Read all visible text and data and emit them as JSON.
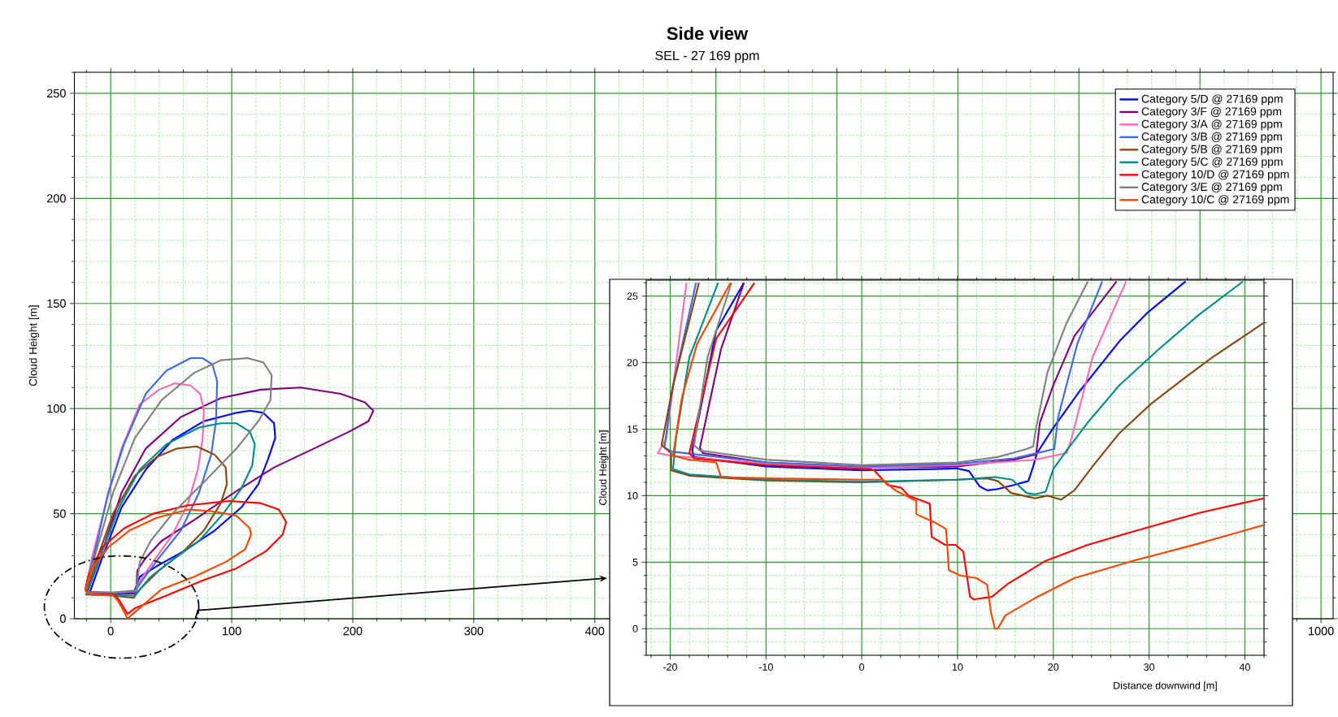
{
  "chart_data": [
    {
      "type": "line",
      "title": "Side view",
      "subtitle": "SEL - 27 169 ppm",
      "ylabel": "Cloud Height [m]",
      "xlim": [
        -30,
        1010
      ],
      "ylim": [
        0,
        260
      ],
      "xticks": [
        {
          "value": -20,
          "label": null
        },
        0,
        {
          "value": 20,
          "label": null
        },
        {
          "value": 40,
          "label": null
        },
        {
          "value": 60,
          "label": null
        },
        {
          "value": 80,
          "label": null
        },
        100,
        {
          "value": 120,
          "label": null
        },
        {
          "value": 140,
          "label": null
        },
        {
          "value": 160,
          "label": null
        },
        {
          "value": 180,
          "label": null
        },
        200,
        {
          "value": 220,
          "label": null
        },
        {
          "value": 240,
          "label": null
        },
        {
          "value": 260,
          "label": null
        },
        {
          "value": 280,
          "label": null
        },
        300,
        {
          "value": 320,
          "label": null
        },
        {
          "value": 340,
          "label": null
        },
        {
          "value": 360,
          "label": null
        },
        {
          "value": 380,
          "label": null
        },
        400,
        {
          "value": 420,
          "label": null
        },
        {
          "value": 440,
          "label": null
        },
        {
          "value": 460,
          "label": null
        },
        {
          "value": 480,
          "label": null
        },
        {
          "value": 500,
          "label": null
        },
        {
          "value": 520,
          "label": null
        },
        {
          "value": 540,
          "label": null
        },
        {
          "value": 560,
          "label": null
        },
        {
          "value": 580,
          "label": null
        },
        {
          "value": 600,
          "label": null
        },
        {
          "value": 620,
          "label": null
        },
        {
          "value": 640,
          "label": null
        },
        {
          "value": 660,
          "label": null
        },
        {
          "value": 680,
          "label": null
        },
        {
          "value": 700,
          "label": null
        },
        {
          "value": 720,
          "label": null
        },
        {
          "value": 740,
          "label": null
        },
        {
          "value": 760,
          "label": null
        },
        {
          "value": 780,
          "label": null
        },
        {
          "value": 800,
          "label": null
        },
        {
          "value": 820,
          "label": null
        },
        {
          "value": 840,
          "label": null
        },
        {
          "value": 860,
          "label": null
        },
        {
          "value": 880,
          "label": null
        },
        {
          "value": 900,
          "label": null
        },
        {
          "value": 920,
          "label": null
        },
        {
          "value": 940,
          "label": null
        },
        {
          "value": 960,
          "label": null
        },
        {
          "value": 980,
          "label": null
        },
        1000
      ],
      "yticks": [
        0,
        {
          "value": 10,
          "label": null
        },
        {
          "value": 20,
          "label": null
        },
        {
          "value": 30,
          "label": null
        },
        {
          "value": 40,
          "label": null
        },
        50,
        {
          "value": 60,
          "label": null
        },
        {
          "value": 70,
          "label": null
        },
        {
          "value": 80,
          "label": null
        },
        {
          "value": 90,
          "label": null
        },
        100,
        {
          "value": 110,
          "label": null
        },
        {
          "value": 120,
          "label": null
        },
        {
          "value": 130,
          "label": null
        },
        {
          "value": 140,
          "label": null
        },
        150,
        {
          "value": 160,
          "label": null
        },
        {
          "value": 170,
          "label": null
        },
        {
          "value": 180,
          "label": null
        },
        {
          "value": 190,
          "label": null
        },
        200,
        {
          "value": 210,
          "label": null
        },
        {
          "value": 220,
          "label": null
        },
        {
          "value": 230,
          "label": null
        },
        {
          "value": 240,
          "label": null
        },
        250,
        {
          "value": 260,
          "label": null
        }
      ],
      "grid": true,
      "legend": "top right",
      "series": [
        {
          "name": "Category 5/D @ 27169 ppm",
          "color": "#0000ff",
          "x": [
            -17,
            -7,
            9,
            29,
            51,
            77,
            104,
            115,
            126,
            135,
            136,
            130,
            122,
            108,
            86,
            60,
            38,
            24,
            19,
            2,
            -17
          ],
          "values": [
            13,
            29,
            53,
            71,
            85,
            94,
            98,
            99,
            98,
            93,
            86,
            76,
            64,
            53,
            42,
            32,
            25,
            20,
            12,
            11.7,
            12.4
          ]
        },
        {
          "name": "Category 3/F @ 27169 ppm",
          "color": "#800080",
          "x": [
            -19,
            -7,
            9,
            29,
            58,
            91,
            124,
            157,
            190,
            210,
            217,
            213,
            197,
            168,
            135,
            102,
            69,
            42,
            29,
            22,
            21,
            2,
            -19
          ],
          "values": [
            13,
            32,
            60,
            81,
            96,
            105,
            109,
            110,
            107,
            103,
            99,
            94,
            89,
            81,
            72,
            60,
            47,
            37,
            29,
            23,
            12,
            12.2,
            12.5
          ]
        },
        {
          "name": "Category 3/A @ 27169 ppm",
          "color": "#ff69b4",
          "x": [
            -21,
            -15.5,
            -4,
            9,
            24,
            40,
            53,
            66,
            74,
            77,
            76,
            72,
            64,
            51,
            35,
            24,
            21,
            2,
            -20
          ],
          "values": [
            13,
            29,
            55,
            81,
            102,
            109,
            112,
            111,
            107,
            99,
            86,
            71,
            55,
            40,
            27,
            18,
            13,
            12.2,
            12.6
          ]
        },
        {
          "name": "Category 3/B @ 27169 ppm",
          "color": "#4169e1",
          "x": [
            -21,
            -13,
            -2,
            11,
            29,
            46,
            66,
            76,
            84,
            88,
            87,
            83,
            73,
            58,
            40,
            27,
            20,
            2,
            -20
          ],
          "values": [
            13.8,
            32,
            60,
            83,
            107,
            118,
            124,
            124,
            121,
            113,
            94,
            78,
            60,
            42,
            29,
            19,
            13,
            12.3,
            12.8
          ]
        },
        {
          "name": "Category 5/B @ 27169 ppm",
          "color": "#8b4513",
          "x": [
            -20,
            -11,
            2,
            20,
            38,
            55,
            71,
            86,
            95,
            96,
            91,
            77,
            60,
            40,
            24,
            19,
            2,
            -20,
            -20.5
          ],
          "values": [
            12.5,
            29,
            50,
            68,
            77,
            81,
            82,
            78,
            72,
            64,
            55,
            42,
            32,
            23,
            14,
            10,
            11,
            11.5,
            12.2
          ]
        },
        {
          "name": "Category 5/C @ 27169 ppm",
          "color": "#008b8b",
          "x": [
            -20,
            -9,
            7,
            24,
            46,
            73,
            91,
            104,
            115,
            119,
            117,
            108,
            93,
            73,
            51,
            33,
            20,
            2,
            -20.5
          ],
          "values": [
            12,
            29,
            53,
            71,
            83,
            91,
            93,
            93,
            89,
            83,
            73,
            62,
            50,
            37,
            28,
            20,
            11,
            11,
            11.8
          ]
        },
        {
          "name": "Category 10/D @ 27169 ppm",
          "color": "#ff0000",
          "x": [
            -21,
            -18,
            -7,
            11,
            35,
            64,
            98,
            124,
            139,
            145,
            142,
            128,
            104,
            75,
            46,
            20,
            14,
            11,
            7,
            2,
            -18,
            -20.5
          ],
          "values": [
            13.8,
            21.5,
            34,
            43,
            50,
            54,
            56,
            55,
            52,
            46,
            40,
            32,
            24,
            18,
            11,
            5,
            2.3,
            5,
            9,
            12,
            12.8,
            13.3
          ]
        },
        {
          "name": "Category 3/E @ 27169 ppm",
          "color": "#808080",
          "x": [
            -21,
            -11,
            2,
            20,
            42,
            69,
            91,
            113,
            126,
            133,
            132,
            122,
            104,
            77,
            51,
            33,
            24,
            21,
            2,
            -20
          ],
          "values": [
            13,
            34,
            60,
            86,
            104,
            117,
            123,
            124,
            122,
            116,
            104,
            94,
            81,
            65,
            50,
            37,
            27,
            13.5,
            12.5,
            12.6
          ]
        },
        {
          "name": "Category 10/C @ 27169 ppm",
          "color": "#ff4500",
          "x": [
            -21,
            -15.5,
            -2,
            15.5,
            38,
            64,
            86,
            104,
            115,
            116,
            111,
            95,
            69,
            42,
            18,
            14,
            10,
            6,
            2,
            -15,
            -20
          ],
          "values": [
            13,
            24,
            34,
            42,
            48,
            52,
            51,
            49,
            43,
            40,
            33,
            27,
            20,
            14,
            2.2,
            0,
            4.5,
            8.5,
            11.2,
            11.3,
            12.4
          ]
        }
      ]
    },
    {
      "type": "line",
      "xlabel": "Distance downwind [m]",
      "ylabel": "Cloud Height [m]",
      "xlim": [
        -22.5,
        42
      ],
      "ylim": [
        -2,
        26.2
      ],
      "xticks": [
        {
          "value": -22,
          "label": null
        },
        -20,
        {
          "value": -18,
          "label": null
        },
        {
          "value": -16,
          "label": null
        },
        {
          "value": -14,
          "label": null
        },
        {
          "value": -12,
          "label": null
        },
        -10,
        {
          "value": -8,
          "label": null
        },
        {
          "value": -6,
          "label": null
        },
        {
          "value": -4,
          "label": null
        },
        {
          "value": -2,
          "label": null
        },
        0,
        {
          "value": 2,
          "label": null
        },
        {
          "value": 4,
          "label": null
        },
        {
          "value": 6,
          "label": null
        },
        {
          "value": 8,
          "label": null
        },
        10,
        {
          "value": 12,
          "label": null
        },
        {
          "value": 14,
          "label": null
        },
        {
          "value": 16,
          "label": null
        },
        {
          "value": 18,
          "label": null
        },
        20,
        {
          "value": 22,
          "label": null
        },
        {
          "value": 24,
          "label": null
        },
        {
          "value": 26,
          "label": null
        },
        {
          "value": 28,
          "label": null
        },
        30,
        {
          "value": 32,
          "label": null
        },
        {
          "value": 34,
          "label": null
        },
        {
          "value": 36,
          "label": null
        },
        {
          "value": 38,
          "label": null
        },
        40,
        {
          "value": 42,
          "label": null
        }
      ],
      "yticks": [
        {
          "value": -2,
          "label": null
        },
        {
          "value": -1,
          "label": null
        },
        0,
        {
          "value": 1,
          "label": null
        },
        {
          "value": 2,
          "label": null
        },
        {
          "value": 3,
          "label": null
        },
        {
          "value": 4,
          "label": null
        },
        5,
        {
          "value": 6,
          "label": null
        },
        {
          "value": 7,
          "label": null
        },
        {
          "value": 8,
          "label": null
        },
        {
          "value": 9,
          "label": null
        },
        10,
        {
          "value": 11,
          "label": null
        },
        {
          "value": 12,
          "label": null
        },
        {
          "value": 13,
          "label": null
        },
        {
          "value": 14,
          "label": null
        },
        15,
        {
          "value": 16,
          "label": null
        },
        {
          "value": 17,
          "label": null
        },
        {
          "value": 18,
          "label": null
        },
        {
          "value": 19,
          "label": null
        },
        20,
        {
          "value": 21,
          "label": null
        },
        {
          "value": 22,
          "label": null
        },
        {
          "value": 23,
          "label": null
        },
        {
          "value": 24,
          "label": null
        },
        25,
        {
          "value": 26,
          "label": null
        }
      ],
      "grid": true,
      "series": [
        {
          "color": "#0000ff",
          "x": [
            -12.3,
            -15.2,
            -17.7,
            -17.5,
            -10,
            0,
            7.6,
            9.9,
            11.2,
            12.3,
            13.1,
            14.2,
            15.9,
            17.4,
            17.9,
            18.3,
            20,
            22.8,
            26.9,
            29.9,
            33.8
          ],
          "values": [
            26,
            22.4,
            13.4,
            12.9,
            12.2,
            11.9,
            12.0,
            12.05,
            11.85,
            10.7,
            10.4,
            10.5,
            10.8,
            11.1,
            12.2,
            13.2,
            15.1,
            17.9,
            21.6,
            23.8,
            26.1
          ]
        },
        {
          "color": "#800080",
          "x": [
            -12.3,
            -14.7,
            -16.9,
            -16.6,
            -10,
            0,
            10,
            15.9,
            18.2,
            18.6,
            20,
            22.2,
            26.6
          ],
          "values": [
            26,
            21,
            13.6,
            13.2,
            12.5,
            12.1,
            12.2,
            12.7,
            13.1,
            15.5,
            18.3,
            22,
            26.1
          ]
        },
        {
          "color": "#ff69b4",
          "x": [
            -18.3,
            -20.4,
            -21.3,
            -19.9,
            -10,
            0,
            10,
            18,
            21.4,
            21.9,
            24.1,
            27.6
          ],
          "values": [
            26,
            14.3,
            13.2,
            13.0,
            12.4,
            12.1,
            12.3,
            12.7,
            13.2,
            14.3,
            20.4,
            26.1
          ]
        },
        {
          "color": "#4169e1",
          "x": [
            -17.3,
            -19.8,
            -20.6,
            -19.7,
            -10,
            0,
            10,
            15.9,
            20.1,
            20.5,
            22.5,
            25.1
          ],
          "values": [
            26,
            17.9,
            13.6,
            13.3,
            12.5,
            12.2,
            12.4,
            12.8,
            13.5,
            15.9,
            21.4,
            26.1
          ]
        },
        {
          "color": "#8b4513",
          "x": [
            -17,
            -19.7,
            -20.9,
            -19.9,
            -19.9,
            -18,
            -10,
            0,
            10,
            13.1,
            14.2,
            15.6,
            18.1,
            19.4,
            20.8,
            22.2,
            24.1,
            26.9,
            30.2,
            33.8,
            36.6,
            42
          ],
          "values": [
            26,
            18.3,
            13.8,
            13.2,
            11.9,
            11.5,
            11.15,
            11.0,
            11.2,
            11.3,
            11.1,
            10.2,
            9.8,
            10.0,
            9.7,
            10.4,
            12.2,
            14.7,
            16.9,
            18.9,
            20.4,
            23.0
          ]
        },
        {
          "color": "#008b8b",
          "x": [
            -15,
            -18,
            -19.4,
            -19.7,
            -18,
            -10,
            0,
            10,
            13.9,
            15.7,
            17.2,
            18.1,
            19.2,
            20,
            21.4,
            23.6,
            26.9,
            31,
            35.2,
            39.8
          ],
          "values": [
            26,
            20.4,
            14.3,
            12.0,
            11.6,
            11.2,
            11.05,
            11.2,
            11.4,
            11.2,
            10.2,
            10.1,
            10.3,
            12.0,
            13.4,
            15.5,
            18.3,
            21,
            23.6,
            26.1
          ]
        },
        {
          "color": "#ff0000",
          "x": [
            -11.2,
            -15.2,
            -18,
            -17.5,
            -10,
            0.8,
            1.3,
            2.7,
            4.1,
            4.9,
            7.1,
            7.3,
            8.7,
            9.8,
            10.6,
            11.3,
            11.7,
            13.6,
            15.3,
            19.2,
            23.6,
            28.3,
            35.2,
            42
          ],
          "values": [
            26,
            21.8,
            13.2,
            12.8,
            12.3,
            12.0,
            11.9,
            10.8,
            10.6,
            10.0,
            9.4,
            6.9,
            6.3,
            6.3,
            5.8,
            2.4,
            2.2,
            2.4,
            3.4,
            5.1,
            6.3,
            7.3,
            8.7,
            9.8
          ]
        },
        {
          "color": "#808080",
          "x": [
            -13.6,
            -16.1,
            -17.5,
            -16.9,
            -10,
            0,
            10,
            14.2,
            17.2,
            17.9,
            18.2,
            19.4,
            21.4,
            23.6
          ],
          "values": [
            26,
            20.4,
            13.8,
            13.4,
            12.7,
            12.3,
            12.5,
            12.9,
            13.5,
            13.7,
            15.1,
            19.3,
            23,
            26.1
          ]
        },
        {
          "color": "#ff4500",
          "x": [
            -13.7,
            -17.2,
            -18.8,
            -19.7,
            -18,
            -15.2,
            -14.7,
            -9.7,
            0,
            2.2,
            3.5,
            5.7,
            5.7,
            7.6,
            8.8,
            9.1,
            10.3,
            12,
            13.1,
            13.5,
            13.9,
            14.2,
            15,
            18.1,
            22.2,
            28.3,
            35.2,
            42
          ],
          "values": [
            26,
            21.4,
            17.3,
            13.0,
            12.7,
            12.5,
            11.4,
            11.3,
            11.2,
            11.2,
            10.4,
            9.6,
            8.6,
            8.0,
            7.5,
            4.4,
            4.0,
            3.8,
            3.3,
            1.2,
            0,
            0,
            1.0,
            2.3,
            3.8,
            5.1,
            6.4,
            7.8
          ]
        }
      ]
    }
  ]
}
